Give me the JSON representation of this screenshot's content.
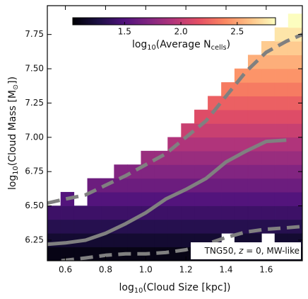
{
  "chart_data": {
    "type": "heatmap",
    "x_label": [
      {
        "text": "log"
      },
      {
        "text": "10",
        "sub": true
      },
      {
        "text": "(Cloud Size [kpc])"
      }
    ],
    "y_label": [
      {
        "text": "log"
      },
      {
        "text": "10",
        "sub": true
      },
      {
        "text": "(Cloud Mass [M"
      },
      {
        "text": "⊙",
        "sub": true
      },
      {
        "text": "])"
      }
    ],
    "xlim": [
      0.51,
      1.78
    ],
    "ylim": [
      6.1,
      7.96
    ],
    "xticks": [
      0.6,
      0.8,
      {
        "value": 1,
        "label": "1.0"
      },
      1.2,
      1.4,
      1.6
    ],
    "yticks": [
      6.25,
      {
        "value": 6.5,
        "label": "6.50"
      },
      6.75,
      {
        "value": 7,
        "label": "7.00"
      },
      7.25,
      {
        "value": 7.5,
        "label": "7.50"
      },
      7.75
    ],
    "x_bins": [
      0.51,
      0.577,
      0.643,
      0.71,
      0.777,
      0.843,
      0.91,
      0.977,
      1.043,
      1.11,
      1.177,
      1.243,
      1.31,
      1.377,
      1.443,
      1.51,
      1.577,
      1.643,
      1.71,
      1.777
    ],
    "y_bins": [
      6.1,
      6.2,
      6.3,
      6.4,
      6.5,
      6.6,
      6.7,
      6.8,
      6.9,
      7.0,
      7.1,
      7.2,
      7.3,
      7.4,
      7.5,
      7.6,
      7.7,
      7.8,
      7.9
    ],
    "z": [
      [
        1.1,
        1.1,
        1.1,
        1.1,
        1.1,
        1.1,
        1.1,
        1.1,
        1.1,
        1.1,
        1.1,
        1.1,
        1.1,
        1.1,
        1.1,
        1.1,
        1.1,
        1.1,
        1.1
      ],
      [
        1.2,
        1.2,
        1.2,
        1.2,
        1.2,
        1.2,
        1.2,
        1.2,
        1.2,
        1.2,
        1.2,
        1.2,
        1.2,
        null,
        1.2,
        1.2,
        null,
        1.2,
        1.2
      ],
      [
        1.31,
        1.31,
        1.31,
        1.31,
        1.31,
        1.31,
        1.31,
        1.31,
        1.31,
        1.31,
        1.31,
        1.31,
        1.31,
        1.31,
        1.31,
        1.31,
        1.31,
        1.31,
        1.31
      ],
      [
        1.41,
        1.41,
        1.41,
        1.41,
        1.41,
        1.41,
        1.41,
        1.41,
        1.41,
        1.41,
        1.41,
        1.41,
        1.41,
        1.41,
        1.41,
        1.41,
        1.41,
        1.41,
        1.41
      ],
      [
        null,
        1.51,
        null,
        1.51,
        1.51,
        1.51,
        1.51,
        1.51,
        1.51,
        1.51,
        1.51,
        1.51,
        1.51,
        1.51,
        1.51,
        1.51,
        1.51,
        1.51,
        1.51
      ],
      [
        null,
        null,
        null,
        1.62,
        1.62,
        1.62,
        1.62,
        1.62,
        1.62,
        1.62,
        1.62,
        1.62,
        1.62,
        1.62,
        1.62,
        1.62,
        1.62,
        1.62,
        1.62
      ],
      [
        null,
        null,
        null,
        null,
        null,
        1.72,
        1.72,
        1.72,
        1.72,
        1.72,
        1.72,
        1.72,
        1.72,
        1.72,
        1.72,
        1.72,
        1.72,
        1.72,
        1.72
      ],
      [
        null,
        null,
        null,
        null,
        null,
        null,
        null,
        1.82,
        1.82,
        1.82,
        1.82,
        1.82,
        1.82,
        1.82,
        1.82,
        1.82,
        1.82,
        1.82,
        1.82
      ],
      [
        null,
        null,
        null,
        null,
        null,
        null,
        null,
        null,
        null,
        1.92,
        1.92,
        1.92,
        1.92,
        1.92,
        1.92,
        1.92,
        1.92,
        1.92,
        1.92
      ],
      [
        null,
        null,
        null,
        null,
        null,
        null,
        null,
        null,
        null,
        null,
        2.03,
        2.03,
        2.03,
        2.03,
        2.03,
        2.03,
        2.03,
        2.03,
        2.03
      ],
      [
        null,
        null,
        null,
        null,
        null,
        null,
        null,
        null,
        null,
        null,
        null,
        2.13,
        2.13,
        2.13,
        2.13,
        2.13,
        2.13,
        2.13,
        2.13
      ],
      [
        null,
        null,
        null,
        null,
        null,
        null,
        null,
        null,
        null,
        null,
        null,
        null,
        2.23,
        2.23,
        2.23,
        2.23,
        2.23,
        2.23,
        2.23
      ],
      [
        null,
        null,
        null,
        null,
        null,
        null,
        null,
        null,
        null,
        null,
        null,
        null,
        null,
        2.34,
        2.34,
        2.34,
        2.34,
        2.34,
        2.34
      ],
      [
        null,
        null,
        null,
        null,
        null,
        null,
        null,
        null,
        null,
        null,
        null,
        null,
        null,
        null,
        2.44,
        2.44,
        2.44,
        2.44,
        2.44
      ],
      [
        null,
        null,
        null,
        null,
        null,
        null,
        null,
        null,
        null,
        null,
        null,
        null,
        null,
        null,
        null,
        2.54,
        2.54,
        2.54,
        2.54
      ],
      [
        null,
        null,
        null,
        null,
        null,
        null,
        null,
        null,
        null,
        null,
        null,
        null,
        null,
        null,
        null,
        null,
        2.65,
        2.65,
        2.65
      ],
      [
        null,
        null,
        null,
        null,
        null,
        null,
        null,
        null,
        null,
        null,
        null,
        null,
        null,
        null,
        null,
        null,
        null,
        2.75,
        2.75
      ],
      [
        null,
        null,
        null,
        null,
        null,
        null,
        null,
        null,
        null,
        null,
        null,
        null,
        null,
        null,
        null,
        null,
        null,
        null,
        2.85
      ]
    ],
    "colormap": "magma",
    "clim": [
      1.04,
      2.84
    ],
    "colorbar_ticks": [
      1.5,
      {
        "value": 2,
        "label": "2.0"
      },
      2.5
    ],
    "colorbar_label": [
      {
        "text": "log"
      },
      {
        "text": "10",
        "sub": true
      },
      {
        "text": "(Average N"
      },
      {
        "text": "cells",
        "sub": true
      },
      {
        "text": ")"
      }
    ],
    "lines": [
      {
        "color": "#808080",
        "dash": false,
        "x": [
          0.51,
          0.6,
          0.7,
          0.8,
          0.9,
          1.0,
          1.1,
          1.2,
          1.3,
          1.4,
          1.5,
          1.6,
          1.7
        ],
        "y": [
          6.22,
          6.23,
          6.25,
          6.3,
          6.37,
          6.45,
          6.55,
          6.62,
          6.7,
          6.82,
          6.9,
          6.97,
          6.98
        ]
      },
      {
        "color": "#808080",
        "dash": true,
        "x": [
          0.51,
          0.6,
          0.7,
          0.8,
          0.9,
          1.0,
          1.1,
          1.2,
          1.3,
          1.4,
          1.5,
          1.6,
          1.7,
          1.78
        ],
        "y": [
          6.52,
          6.55,
          6.58,
          6.65,
          6.72,
          6.8,
          6.88,
          7.0,
          7.12,
          7.3,
          7.48,
          7.62,
          7.7,
          7.75
        ]
      },
      {
        "color": "#808080",
        "dash": true,
        "x": [
          0.58,
          0.7,
          0.8,
          0.9,
          1.0,
          1.1,
          1.2,
          1.3,
          1.4,
          1.5,
          1.6,
          1.7,
          1.78
        ],
        "y": [
          6.1,
          6.12,
          6.14,
          6.15,
          6.15,
          6.16,
          6.18,
          6.22,
          6.27,
          6.31,
          6.33,
          6.34,
          6.35
        ]
      }
    ],
    "annotation": [
      {
        "text": "TNG50, "
      },
      {
        "text": "z",
        "italic": true
      },
      {
        "text": " = 0, MW-like"
      }
    ]
  }
}
